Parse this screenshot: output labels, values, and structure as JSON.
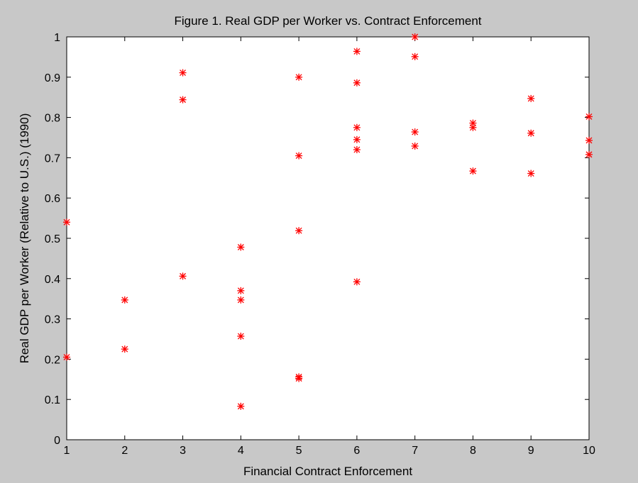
{
  "chart_data": {
    "type": "scatter",
    "title": "Figure 1. Real GDP per Worker vs. Contract Enforcement",
    "xlabel": "Financial Contract Enforcement",
    "ylabel": "Real GDP per Worker (Relative to U.S.) (1990)",
    "xlim": [
      1,
      10
    ],
    "ylim": [
      0,
      1
    ],
    "xticks": [
      1,
      2,
      3,
      4,
      5,
      6,
      7,
      8,
      9,
      10
    ],
    "yticks": [
      0,
      0.1,
      0.2,
      0.3,
      0.4,
      0.5,
      0.6,
      0.7,
      0.8,
      0.9,
      1
    ],
    "grid": false,
    "marker": "*",
    "marker_color": "#ff0000",
    "series": [
      {
        "x": [
          1,
          1,
          2,
          2,
          3,
          3,
          3,
          4,
          4,
          4,
          4,
          4,
          5,
          5,
          5,
          5,
          5,
          6,
          6,
          6,
          6,
          6,
          6,
          7,
          7,
          7,
          7,
          8,
          8,
          8,
          9,
          9,
          9,
          10,
          10,
          10
        ],
        "y": [
          0.54,
          0.205,
          0.347,
          0.225,
          0.911,
          0.844,
          0.406,
          0.478,
          0.37,
          0.347,
          0.257,
          0.083,
          0.9,
          0.705,
          0.519,
          0.156,
          0.152,
          0.964,
          0.886,
          0.775,
          0.745,
          0.72,
          0.392,
          1.0,
          0.951,
          0.764,
          0.729,
          0.786,
          0.775,
          0.667,
          0.847,
          0.761,
          0.661,
          0.802,
          0.743,
          0.708
        ]
      }
    ]
  }
}
